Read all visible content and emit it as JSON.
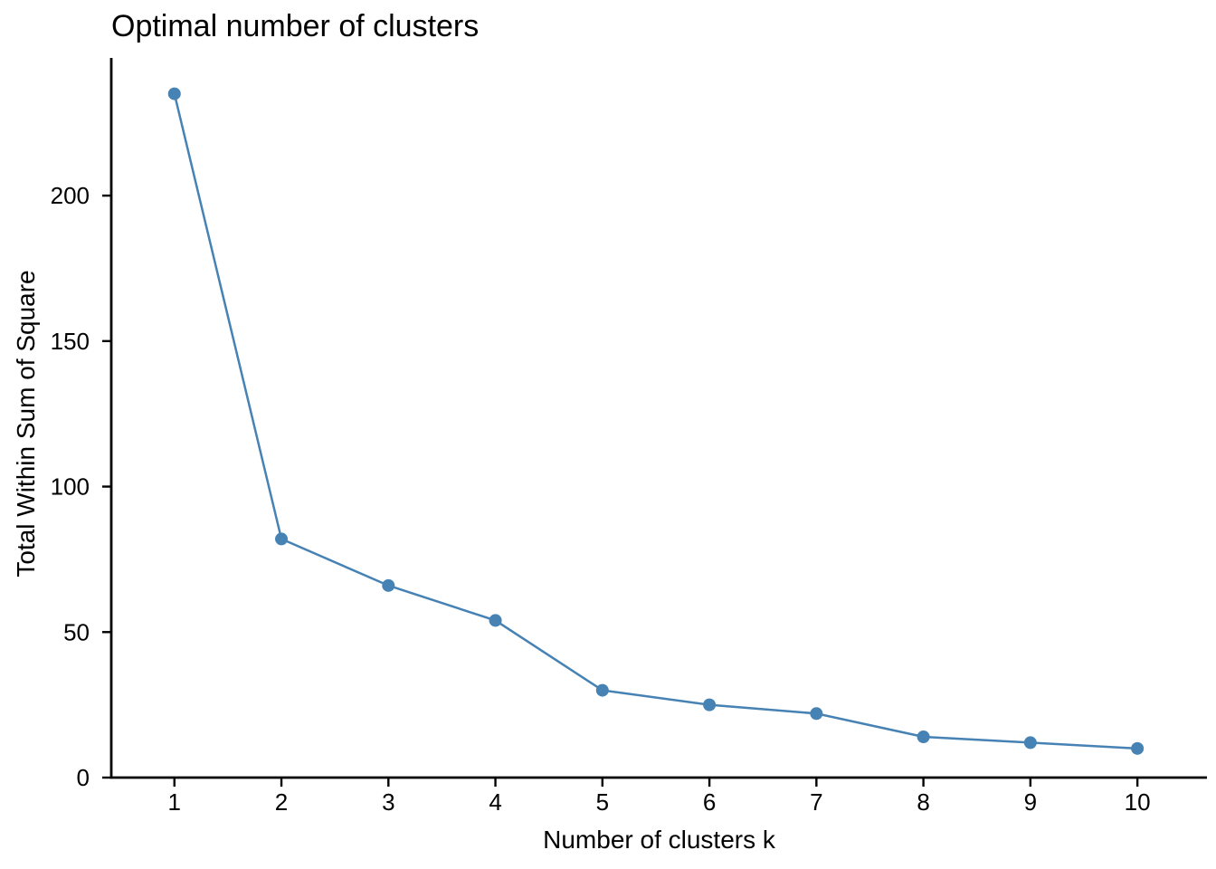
{
  "chart_data": {
    "type": "line",
    "title": "Optimal number of clusters",
    "xlabel": "Number of clusters k",
    "ylabel": "Total Within Sum of Square",
    "x": [
      1,
      2,
      3,
      4,
      5,
      6,
      7,
      8,
      9,
      10
    ],
    "values": [
      235,
      82,
      66,
      54,
      30,
      25,
      22,
      14,
      12,
      10
    ],
    "xticks": [
      1,
      2,
      3,
      4,
      5,
      6,
      7,
      8,
      9,
      10
    ],
    "yticks": [
      0,
      50,
      100,
      150,
      200
    ],
    "xlim": [
      0.41,
      10.65
    ],
    "ylim": [
      0,
      247
    ],
    "grid": false,
    "legend": "none",
    "line_color": "#4682B4",
    "marker": "circle",
    "marker_radius": 7,
    "line_width": 2.5,
    "axis_color": "#000000",
    "text_color": "#000000"
  }
}
